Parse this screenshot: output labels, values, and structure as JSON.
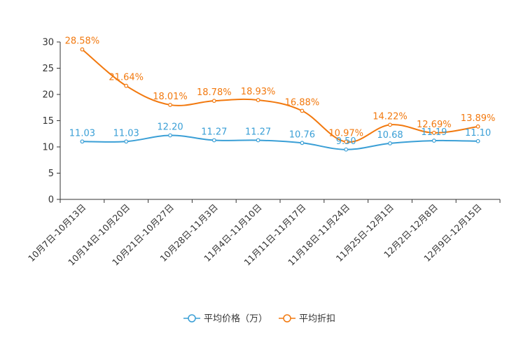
{
  "chart_data": {
    "type": "line",
    "categories": [
      "10月7日-10月13日",
      "10月14日-10月20日",
      "10月21日-10月27日",
      "10月28日-11月3日",
      "11月4日-11月10日",
      "11月11日-11月17日",
      "11月18日-11月24日",
      "11月25日-12月1日",
      "12月2日-12月8日",
      "12月9日-12月15日"
    ],
    "series": [
      {
        "name": "平均价格（万）",
        "color": "#3a9fd6",
        "values": [
          11.03,
          11.03,
          12.2,
          11.27,
          11.27,
          10.76,
          9.5,
          10.68,
          11.19,
          11.1
        ],
        "labels": [
          "11.03",
          "11.03",
          "12.20",
          "11.27",
          "11.27",
          "10.76",
          "9.50",
          "10.68",
          "11.19",
          "11.10"
        ]
      },
      {
        "name": "平均折扣",
        "color": "#f2790f",
        "values": [
          28.58,
          21.64,
          18.01,
          18.78,
          18.93,
          16.88,
          10.97,
          14.22,
          12.69,
          13.89
        ],
        "labels": [
          "28.58%",
          "21.64%",
          "18.01%",
          "18.78%",
          "18.93%",
          "16.88%",
          "10.97%",
          "14.22%",
          "12.69%",
          "13.89%"
        ]
      }
    ],
    "yticks": [
      0,
      5,
      10,
      15,
      20,
      25,
      30
    ],
    "ylim": [
      0,
      30
    ],
    "smooth": true,
    "legend_position": "bottom-center"
  }
}
